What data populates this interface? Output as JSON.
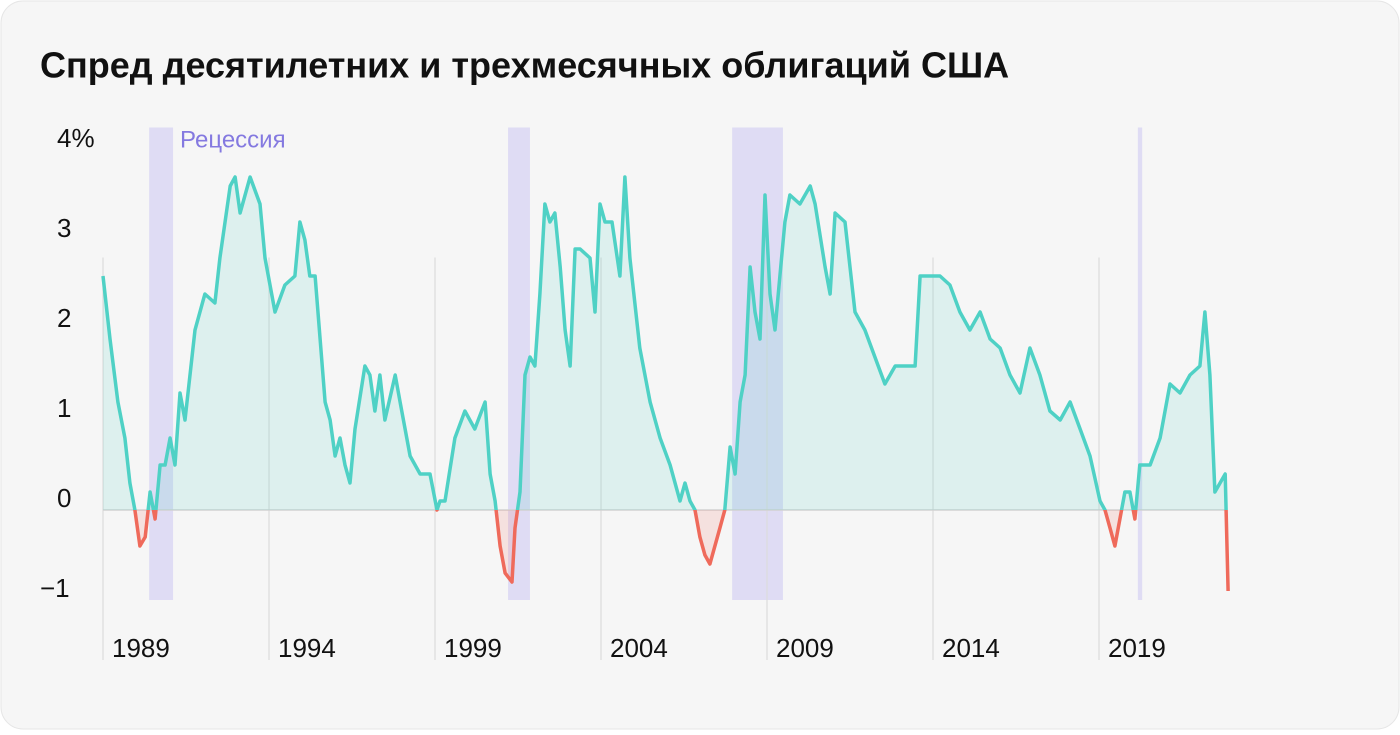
{
  "chart_data": {
    "type": "line",
    "title": "Спред десятилетних и трехмесячных облигаций США",
    "annotation": "Рецессия",
    "recessions": [
      [
        1990.39,
        1991.11
      ],
      [
        2001.2,
        2001.86
      ],
      [
        2007.95,
        2009.48
      ],
      [
        2020.17,
        2020.3
      ]
    ],
    "xlim": [
      1989,
      2023
    ],
    "xticks": [
      1989,
      1994,
      1999,
      2004,
      2009,
      2014,
      2019
    ],
    "ylim": [
      -1,
      4.25
    ],
    "yticks": [
      {
        "value": -1,
        "label": "−1"
      },
      0,
      1,
      2,
      3,
      {
        "value": 4,
        "label": "4%"
      }
    ],
    "series": [
      {
        "name": "Спред",
        "color": "#4fd1c5",
        "negative_color": "#ef6a5b",
        "x": [
          1989.0,
          1989.21,
          1989.45,
          1989.66,
          1989.81,
          1989.96,
          1990.11,
          1990.27,
          1990.42,
          1990.57,
          1990.72,
          1990.87,
          1991.02,
          1991.17,
          1991.32,
          1991.47,
          1991.62,
          1991.77,
          1992.07,
          1992.37,
          1992.52,
          1992.83,
          1992.98,
          1993.13,
          1993.43,
          1993.73,
          1993.88,
          1994.03,
          1994.18,
          1994.48,
          1994.78,
          1994.93,
          1995.08,
          1995.23,
          1995.39,
          1995.54,
          1995.69,
          1995.84,
          1995.99,
          1996.14,
          1996.29,
          1996.44,
          1996.59,
          1996.89,
          1997.04,
          1997.19,
          1997.34,
          1997.49,
          1997.8,
          1997.95,
          1998.25,
          1998.55,
          1998.85,
          1999.06,
          1999.15,
          1999.3,
          1999.6,
          1999.9,
          2000.2,
          2000.51,
          2000.66,
          2000.81,
          2000.96,
          2001.11,
          2001.32,
          2001.41,
          2001.56,
          2001.71,
          2001.86,
          2002.01,
          2002.16,
          2002.31,
          2002.46,
          2002.61,
          2002.77,
          2002.92,
          2003.07,
          2003.22,
          2003.37,
          2003.67,
          2003.82,
          2003.97,
          2004.12,
          2004.33,
          2004.57,
          2004.72,
          2004.87,
          2005.17,
          2005.48,
          2005.78,
          2006.08,
          2006.38,
          2006.53,
          2006.68,
          2006.83,
          2006.98,
          2007.13,
          2007.28,
          2007.43,
          2007.58,
          2007.73,
          2007.89,
          2008.04,
          2008.19,
          2008.34,
          2008.49,
          2008.64,
          2008.79,
          2008.94,
          2009.09,
          2009.24,
          2009.39,
          2009.54,
          2009.69,
          2009.99,
          2010.3,
          2010.45,
          2010.75,
          2010.9,
          2011.05,
          2011.35,
          2011.65,
          2011.95,
          2012.25,
          2012.55,
          2012.86,
          2013.16,
          2013.46,
          2013.61,
          2013.91,
          2014.21,
          2014.51,
          2014.81,
          2015.11,
          2015.42,
          2015.72,
          2016.02,
          2016.32,
          2016.62,
          2016.92,
          2017.22,
          2017.52,
          2017.83,
          2018.13,
          2018.43,
          2018.73,
          2019.03,
          2019.18,
          2019.33,
          2019.48,
          2019.63,
          2019.78,
          2019.93,
          2020.08,
          2020.23,
          2020.54,
          2020.84,
          2021.14,
          2021.44,
          2021.74,
          2022.04,
          2022.19,
          2022.34,
          2022.49,
          2022.8,
          2022.89
        ],
        "values": [
          2.6,
          1.9,
          1.2,
          0.8,
          0.3,
          0,
          -0.4,
          -0.3,
          0.2,
          -0.1,
          0.5,
          0.5,
          0.8,
          0.5,
          1.3,
          1.0,
          1.5,
          2.0,
          2.4,
          2.3,
          2.8,
          3.6,
          3.7,
          3.3,
          3.7,
          3.4,
          2.8,
          2.5,
          2.2,
          2.5,
          2.6,
          3.2,
          3.0,
          2.6,
          2.6,
          1.9,
          1.2,
          1.0,
          0.6,
          0.8,
          0.5,
          0.3,
          0.9,
          1.6,
          1.5,
          1.1,
          1.5,
          1.0,
          1.5,
          1.2,
          0.6,
          0.4,
          0.4,
          0,
          0.1,
          0.1,
          0.8,
          1.1,
          0.9,
          1.2,
          0.4,
          0.1,
          -0.4,
          -0.7,
          -0.8,
          -0.2,
          0.2,
          1.5,
          1.7,
          1.6,
          2.4,
          3.4,
          3.2,
          3.3,
          2.7,
          2.0,
          1.6,
          2.9,
          2.9,
          2.8,
          2.2,
          3.4,
          3.2,
          3.2,
          2.6,
          3.7,
          2.8,
          1.8,
          1.2,
          0.8,
          0.5,
          0.1,
          0.3,
          0.1,
          0,
          -0.3,
          -0.5,
          -0.6,
          -0.4,
          -0.2,
          0,
          0.7,
          0.4,
          1.2,
          1.5,
          2.7,
          2.2,
          1.9,
          3.5,
          2.4,
          2.0,
          2.6,
          3.2,
          3.5,
          3.4,
          3.6,
          3.4,
          2.7,
          2.4,
          3.3,
          3.2,
          2.2,
          2.0,
          1.7,
          1.4,
          1.6,
          1.6,
          1.6,
          2.6,
          2.6,
          2.6,
          2.5,
          2.2,
          2.0,
          2.2,
          1.9,
          1.8,
          1.5,
          1.3,
          1.8,
          1.5,
          1.1,
          1.0,
          1.2,
          0.9,
          0.6,
          0.1,
          0,
          -0.2,
          -0.4,
          -0.1,
          0.2,
          0.2,
          -0.1,
          0.5,
          0.5,
          0.8,
          1.4,
          1.3,
          1.5,
          1.6,
          2.2,
          1.5,
          0.2,
          0.4,
          -0.9
        ]
      }
    ]
  }
}
